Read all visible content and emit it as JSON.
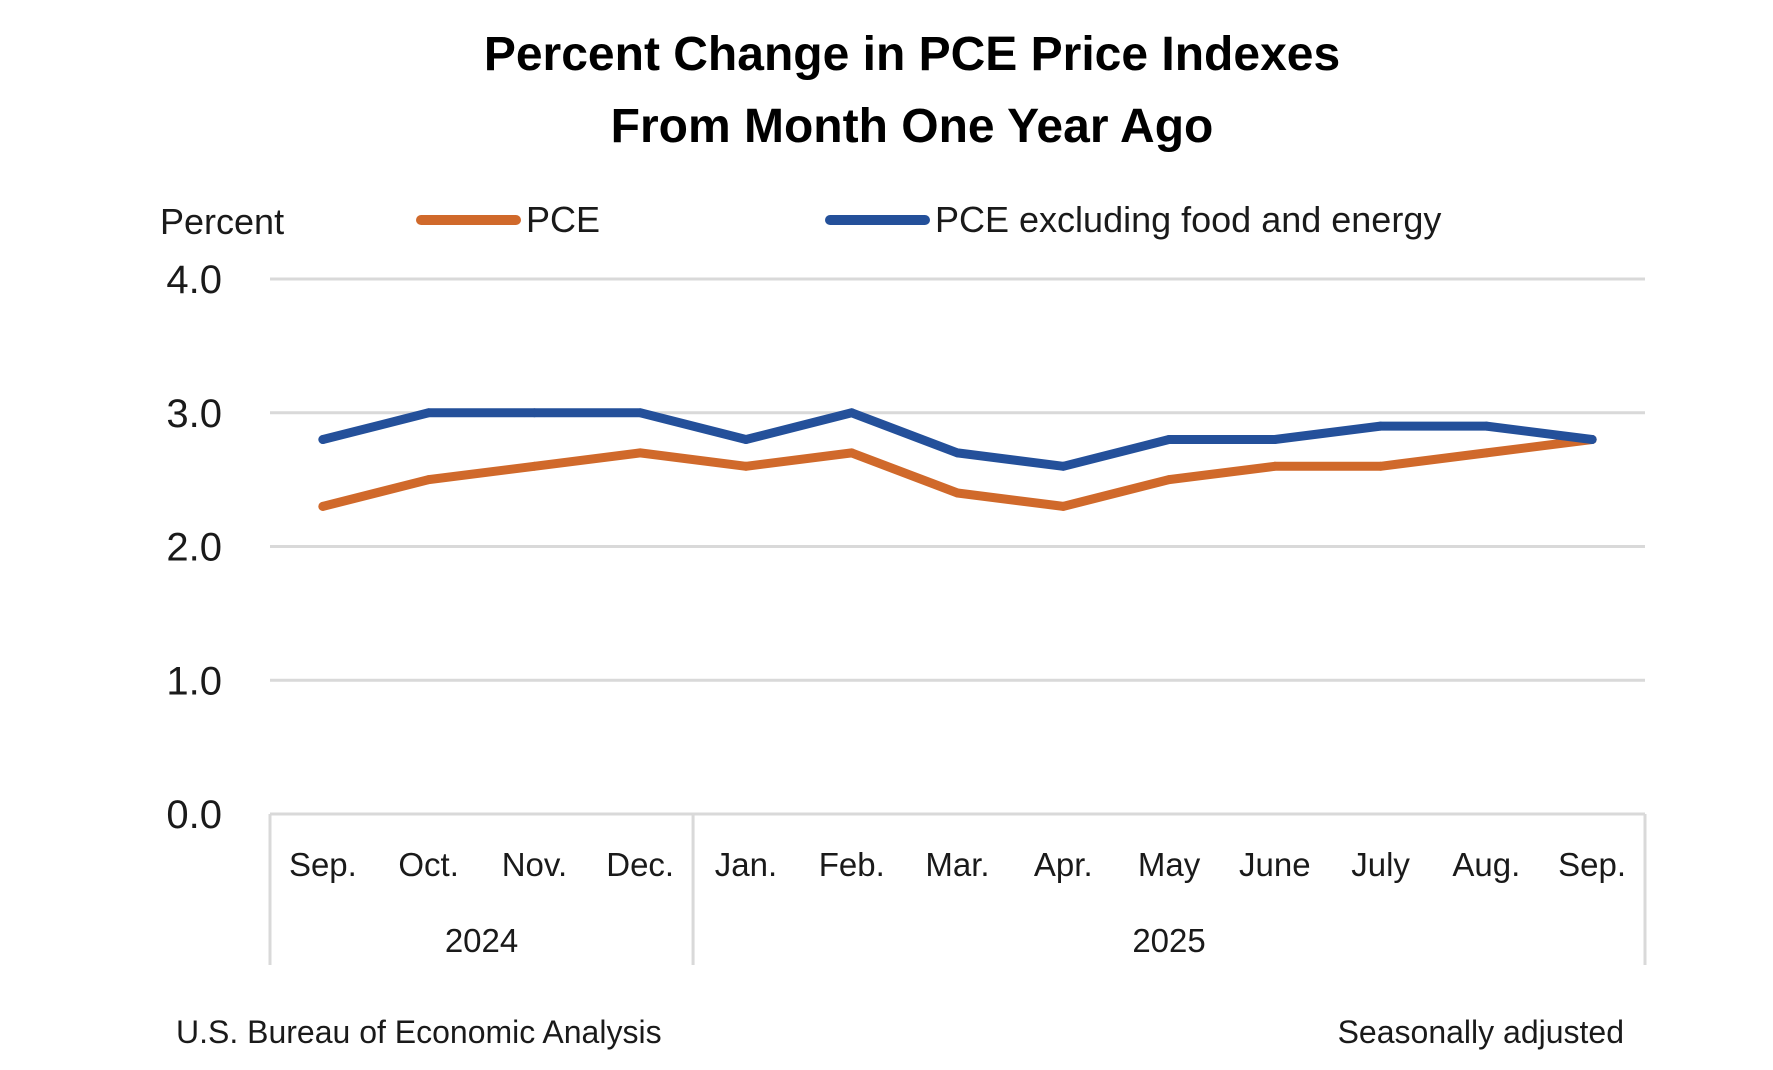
{
  "chart_data": {
    "type": "line",
    "title": "Percent Change in PCE Price Indexes",
    "subtitle": "From Month One Year Ago",
    "ylabel": "Percent",
    "xlabel": "",
    "ylim": [
      0,
      4
    ],
    "yticks": [
      "0.0",
      "1.0",
      "2.0",
      "3.0",
      "4.0"
    ],
    "ytick_values": [
      0,
      1,
      2,
      3,
      4
    ],
    "grid": true,
    "legend_position": "top",
    "categories": [
      "Sep.",
      "Oct.",
      "Nov.",
      "Dec.",
      "Jan.",
      "Feb.",
      "Mar.",
      "Apr.",
      "May",
      "June",
      "July",
      "Aug.",
      "Sep."
    ],
    "year_groups": [
      {
        "label": "2024",
        "start": 0,
        "end": 3
      },
      {
        "label": "2025",
        "start": 4,
        "end": 12
      }
    ],
    "series": [
      {
        "name": "PCE",
        "color": "#D0692B",
        "values": [
          2.3,
          2.5,
          2.6,
          2.7,
          2.6,
          2.7,
          2.4,
          2.3,
          2.5,
          2.6,
          2.6,
          2.7,
          2.8
        ]
      },
      {
        "name": "PCE excluding food and energy",
        "color": "#24509A",
        "values": [
          2.8,
          3.0,
          3.0,
          3.0,
          2.8,
          3.0,
          2.7,
          2.6,
          2.8,
          2.8,
          2.9,
          2.9,
          2.8
        ]
      }
    ]
  },
  "footer": {
    "source": "U.S. Bureau of Economic Analysis",
    "note": "Seasonally adjusted"
  }
}
